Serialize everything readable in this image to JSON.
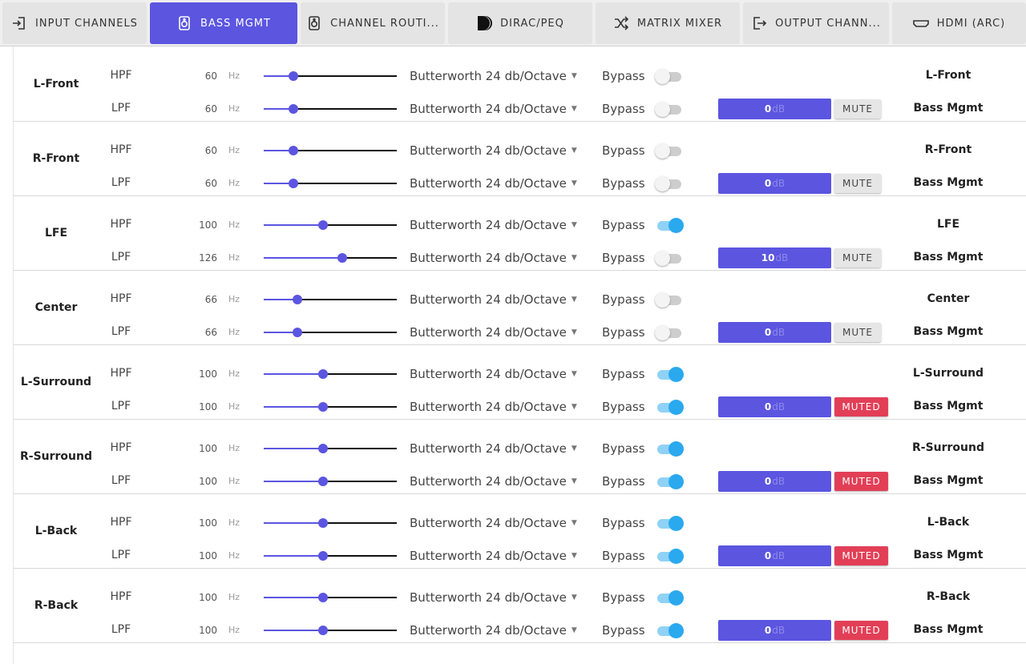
{
  "tabs": [
    {
      "label": "INPUT CHANNELS",
      "icon": "input-arrow-icon",
      "active": false
    },
    {
      "label": "BASS MGMT",
      "icon": "speaker-icon",
      "active": true
    },
    {
      "label": "CHANNEL ROUTI...",
      "icon": "speaker-icon",
      "active": false
    },
    {
      "label": "DIRAC/PEQ",
      "icon": "dirac-logo-icon",
      "active": false
    },
    {
      "label": "MATRIX MIXER",
      "icon": "shuffle-icon",
      "active": false
    },
    {
      "label": "OUTPUT CHANN...",
      "icon": "output-arrow-icon",
      "active": false
    },
    {
      "label": "HDMI (ARC)",
      "icon": "hdmi-icon",
      "active": false
    }
  ],
  "colors": {
    "accent": "#5b55e0",
    "toggle_on": "#2aa9ef",
    "muted": "#e23f57"
  },
  "slider_range_hz": [
    20,
    200
  ],
  "bypass_label": "Bypass",
  "channels": [
    {
      "name": "L-Front",
      "hpf": {
        "type": "HPF",
        "freq": "60",
        "unit": "Hz",
        "filter": "Butterworth 24 db/Octave",
        "bypass": false,
        "route": "L-Front"
      },
      "lpf": {
        "type": "LPF",
        "freq": "60",
        "unit": "Hz",
        "filter": "Butterworth 24 db/Octave",
        "bypass": false,
        "route": "Bass Mgmt"
      },
      "gain": "0",
      "gain_unit": "dB",
      "mute_label": "MUTE",
      "muted": false
    },
    {
      "name": "R-Front",
      "hpf": {
        "type": "HPF",
        "freq": "60",
        "unit": "Hz",
        "filter": "Butterworth 24 db/Octave",
        "bypass": false,
        "route": "R-Front"
      },
      "lpf": {
        "type": "LPF",
        "freq": "60",
        "unit": "Hz",
        "filter": "Butterworth 24 db/Octave",
        "bypass": false,
        "route": "Bass Mgmt"
      },
      "gain": "0",
      "gain_unit": "dB",
      "mute_label": "MUTE",
      "muted": false
    },
    {
      "name": "LFE",
      "hpf": {
        "type": "HPF",
        "freq": "100",
        "unit": "Hz",
        "filter": "Butterworth 24 db/Octave",
        "bypass": true,
        "route": "LFE"
      },
      "lpf": {
        "type": "LPF",
        "freq": "126",
        "unit": "Hz",
        "filter": "Butterworth 24 db/Octave",
        "bypass": false,
        "route": "Bass Mgmt"
      },
      "gain": "10",
      "gain_unit": "dB",
      "mute_label": "MUTE",
      "muted": false
    },
    {
      "name": "Center",
      "hpf": {
        "type": "HPF",
        "freq": "66",
        "unit": "Hz",
        "filter": "Butterworth 24 db/Octave",
        "bypass": false,
        "route": "Center"
      },
      "lpf": {
        "type": "LPF",
        "freq": "66",
        "unit": "Hz",
        "filter": "Butterworth 24 db/Octave",
        "bypass": false,
        "route": "Bass Mgmt"
      },
      "gain": "0",
      "gain_unit": "dB",
      "mute_label": "MUTE",
      "muted": false
    },
    {
      "name": "L-Surround",
      "hpf": {
        "type": "HPF",
        "freq": "100",
        "unit": "Hz",
        "filter": "Butterworth 24 db/Octave",
        "bypass": true,
        "route": "L-Surround"
      },
      "lpf": {
        "type": "LPF",
        "freq": "100",
        "unit": "Hz",
        "filter": "Butterworth 24 db/Octave",
        "bypass": true,
        "route": "Bass Mgmt"
      },
      "gain": "0",
      "gain_unit": "dB",
      "mute_label": "MUTED",
      "muted": true
    },
    {
      "name": "R-Surround",
      "hpf": {
        "type": "HPF",
        "freq": "100",
        "unit": "Hz",
        "filter": "Butterworth 24 db/Octave",
        "bypass": true,
        "route": "R-Surround"
      },
      "lpf": {
        "type": "LPF",
        "freq": "100",
        "unit": "Hz",
        "filter": "Butterworth 24 db/Octave",
        "bypass": true,
        "route": "Bass Mgmt"
      },
      "gain": "0",
      "gain_unit": "dB",
      "mute_label": "MUTED",
      "muted": true
    },
    {
      "name": "L-Back",
      "hpf": {
        "type": "HPF",
        "freq": "100",
        "unit": "Hz",
        "filter": "Butterworth 24 db/Octave",
        "bypass": true,
        "route": "L-Back"
      },
      "lpf": {
        "type": "LPF",
        "freq": "100",
        "unit": "Hz",
        "filter": "Butterworth 24 db/Octave",
        "bypass": true,
        "route": "Bass Mgmt"
      },
      "gain": "0",
      "gain_unit": "dB",
      "mute_label": "MUTED",
      "muted": true
    },
    {
      "name": "R-Back",
      "hpf": {
        "type": "HPF",
        "freq": "100",
        "unit": "Hz",
        "filter": "Butterworth 24 db/Octave",
        "bypass": true,
        "route": "R-Back"
      },
      "lpf": {
        "type": "LPF",
        "freq": "100",
        "unit": "Hz",
        "filter": "Butterworth 24 db/Octave",
        "bypass": true,
        "route": "Bass Mgmt"
      },
      "gain": "0",
      "gain_unit": "dB",
      "mute_label": "MUTED",
      "muted": true
    }
  ]
}
